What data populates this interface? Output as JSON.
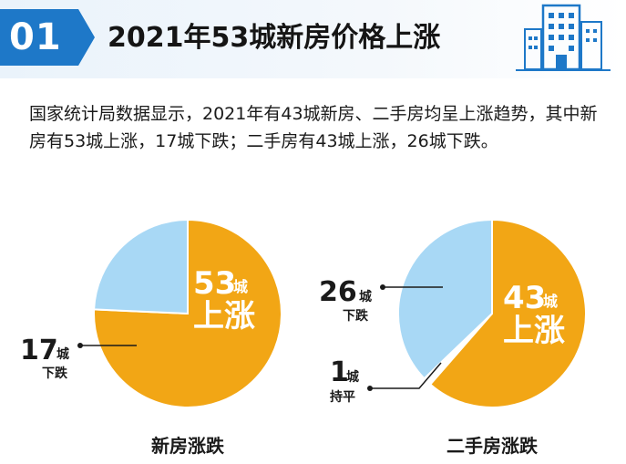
{
  "header": {
    "number": "01",
    "title": "2021年53城新房价格上涨",
    "icon": "building-icon"
  },
  "intro": {
    "text": "国家统计局数据显示，2021年有43城新房、二手房均呈上涨趋势，其中新房有53城上涨，17城下跌；二手房有43城上涨，26城下跌。"
  },
  "colors": {
    "rise": "#f2a615",
    "fall": "#a8d8f5",
    "flat": "#ffffff",
    "accent": "#1e78c8"
  },
  "chart_data": [
    {
      "type": "pie",
      "title": "新房涨跌",
      "slices": [
        {
          "label": "上涨",
          "value": 53,
          "unit": "城",
          "color": "#f2a615"
        },
        {
          "label": "下跌",
          "value": 17,
          "unit": "城",
          "color": "#a8d8f5"
        }
      ]
    },
    {
      "type": "pie",
      "title": "二手房涨跌",
      "slices": [
        {
          "label": "上涨",
          "value": 43,
          "unit": "城",
          "color": "#f2a615"
        },
        {
          "label": "持平",
          "value": 1,
          "unit": "城",
          "color": "#ffffff"
        },
        {
          "label": "下跌",
          "value": 26,
          "unit": "城",
          "color": "#a8d8f5"
        }
      ]
    }
  ]
}
